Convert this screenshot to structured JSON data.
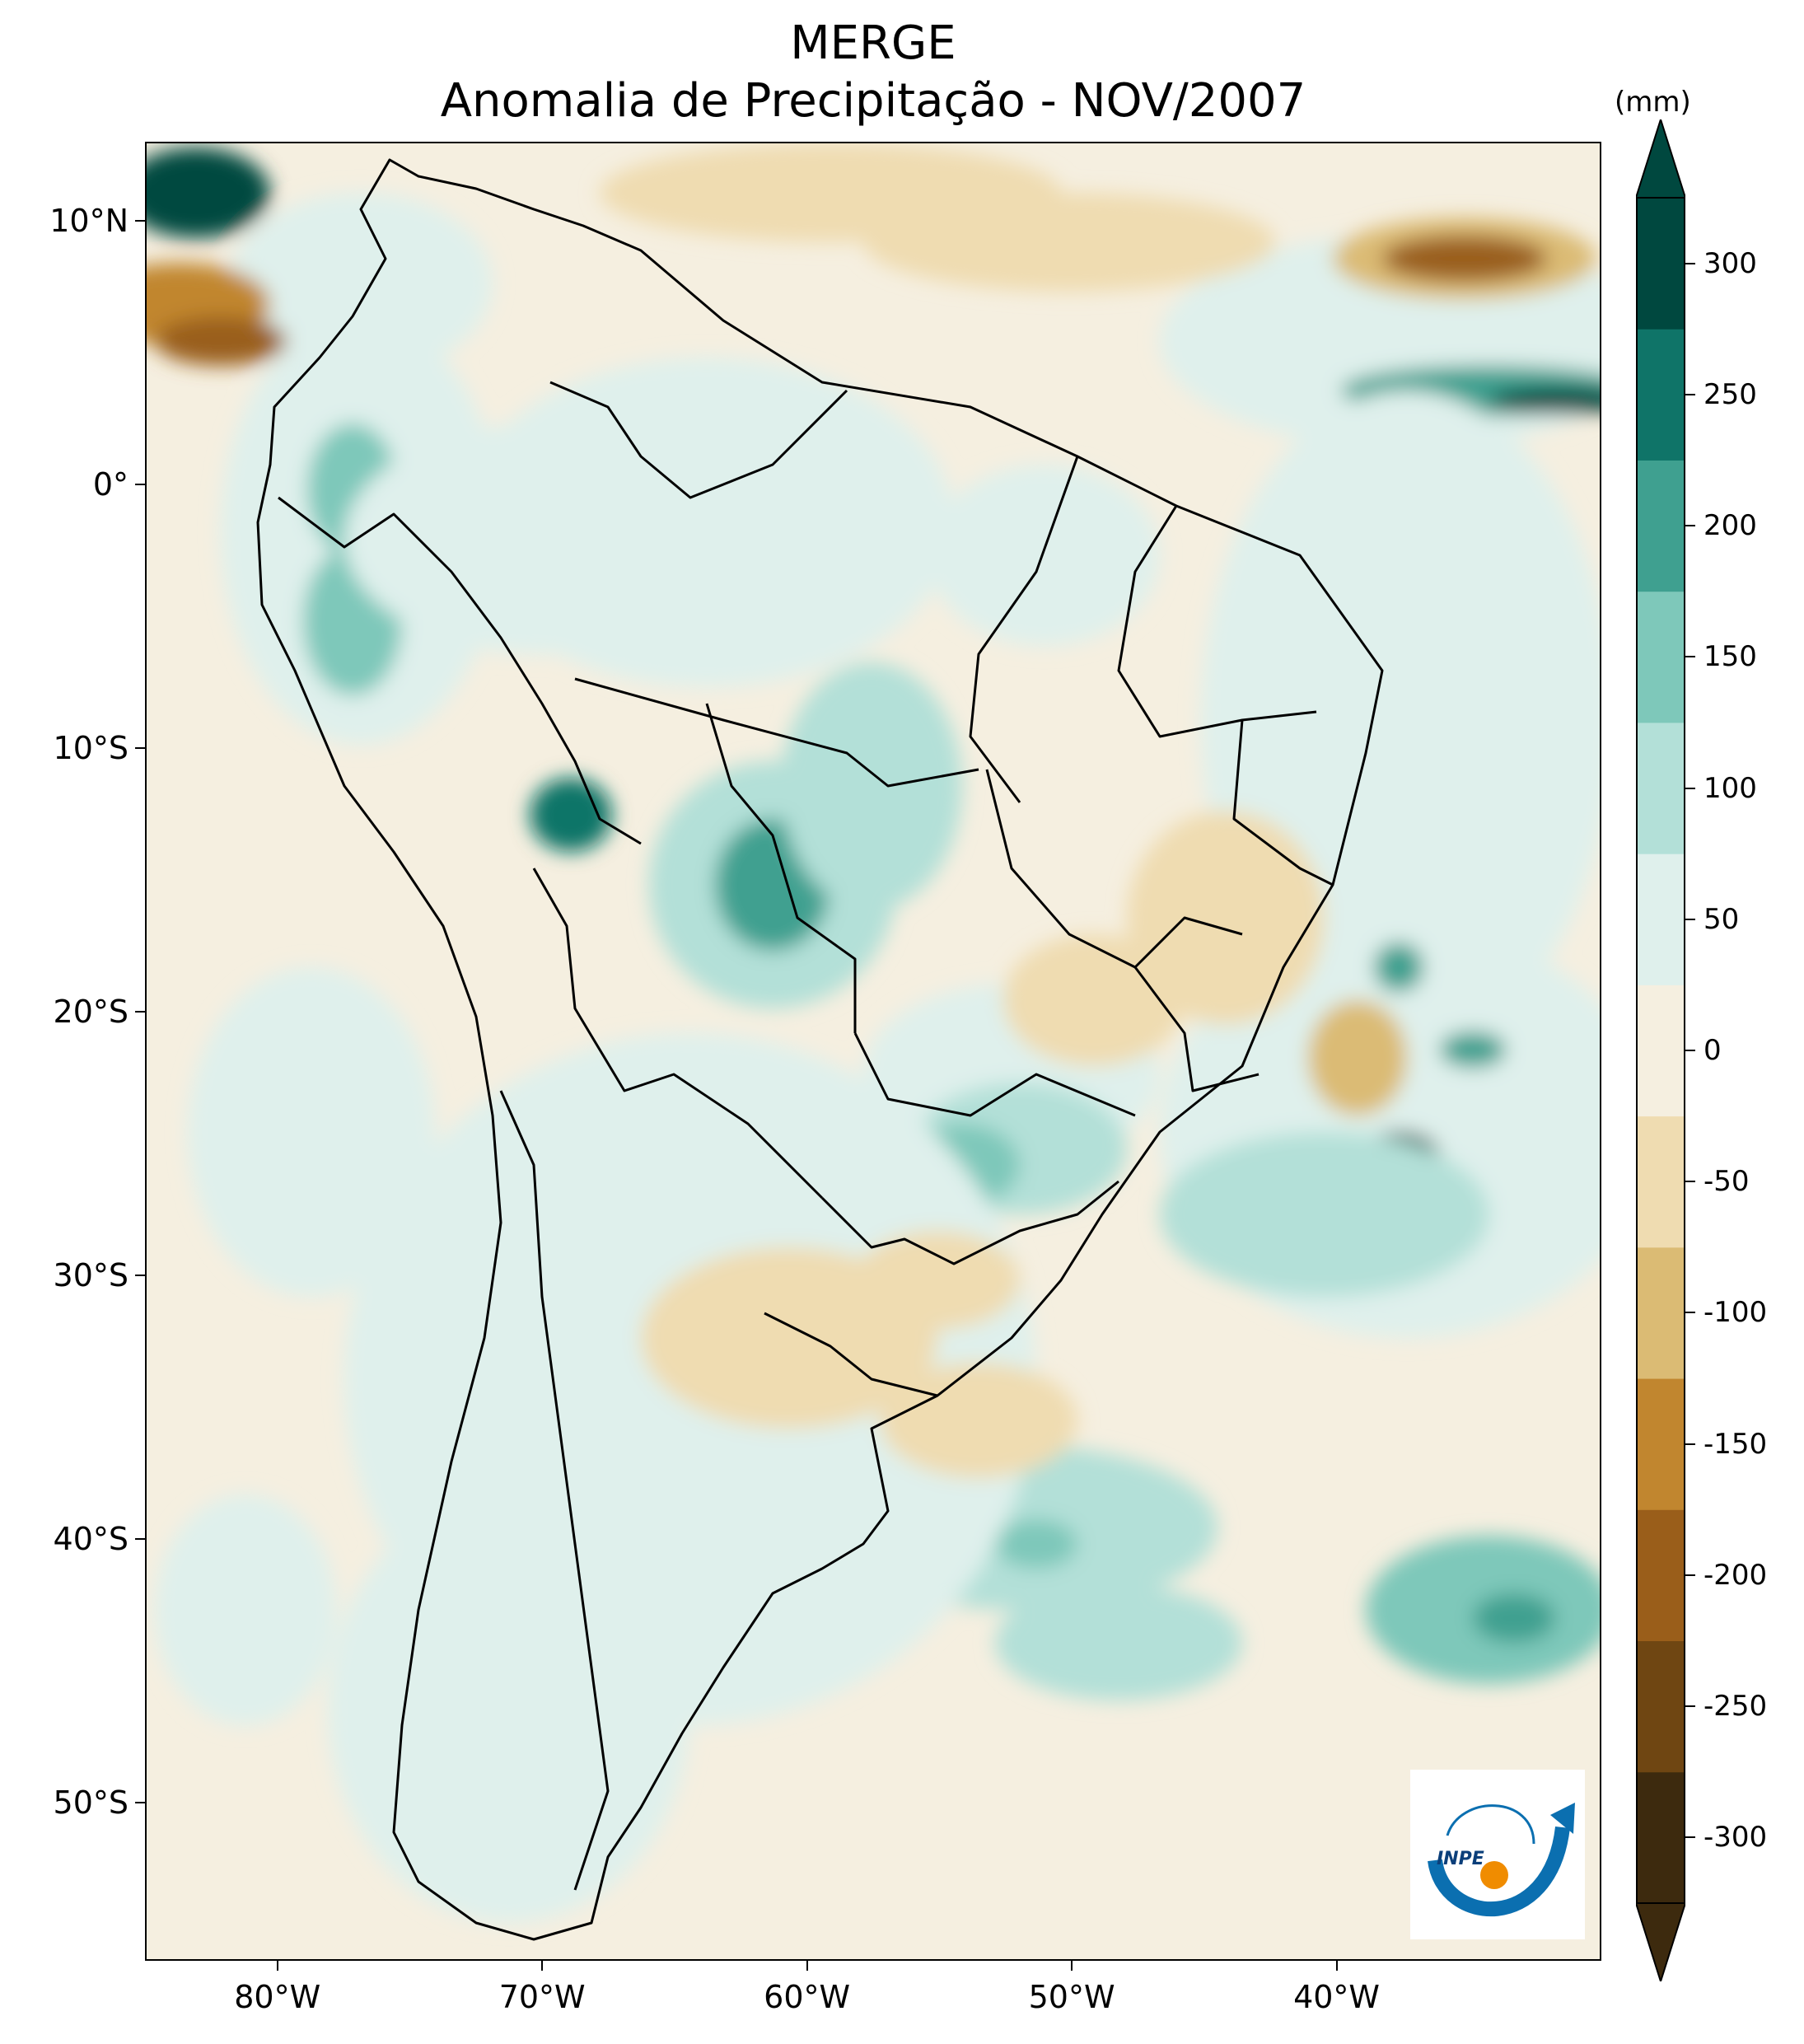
{
  "title": {
    "line1": "MERGE",
    "line2": "Anomalia de Precipitação - NOV/2007"
  },
  "map": {
    "projection": "plate-carree",
    "extent": {
      "lon_min": -85,
      "lon_max": -30,
      "lat_min": -56,
      "lat_max": 13
    },
    "lat_ticks": [
      {
        "value": 10,
        "label": "10°N"
      },
      {
        "value": 0,
        "label": "0°"
      },
      {
        "value": -10,
        "label": "10°S"
      },
      {
        "value": -20,
        "label": "20°S"
      },
      {
        "value": -30,
        "label": "30°S"
      },
      {
        "value": -40,
        "label": "40°S"
      },
      {
        "value": -50,
        "label": "50°S"
      }
    ],
    "lon_ticks": [
      {
        "value": -80,
        "label": "80°W"
      },
      {
        "value": -70,
        "label": "70°W"
      },
      {
        "value": -60,
        "label": "60°W"
      },
      {
        "value": -50,
        "label": "50°W"
      },
      {
        "value": -40,
        "label": "40°W"
      }
    ],
    "background_color": "#f5efe0"
  },
  "colorbar": {
    "unit": "(mm)",
    "levels": [
      -300,
      -250,
      -200,
      -150,
      -100,
      -50,
      0,
      50,
      100,
      150,
      200,
      250,
      300
    ],
    "labels": [
      "300",
      "250",
      "200",
      "150",
      "100",
      "50",
      "0",
      "-50",
      "-100",
      "-150",
      "-200",
      "-250",
      "-300"
    ],
    "colors_low_to_high": [
      "#3d2a0e",
      "#6f4612",
      "#9a5e1a",
      "#c1862f",
      "#dbbb74",
      "#efdcb1",
      "#f5efe0",
      "#dff0ec",
      "#b3e0d8",
      "#7ec8ba",
      "#3fa090",
      "#0f7468",
      "#00483f"
    ],
    "extend": "both"
  },
  "logo": {
    "text": "INPE",
    "colors": {
      "blue": "#0b6fb0",
      "orange": "#f08c00"
    }
  }
}
